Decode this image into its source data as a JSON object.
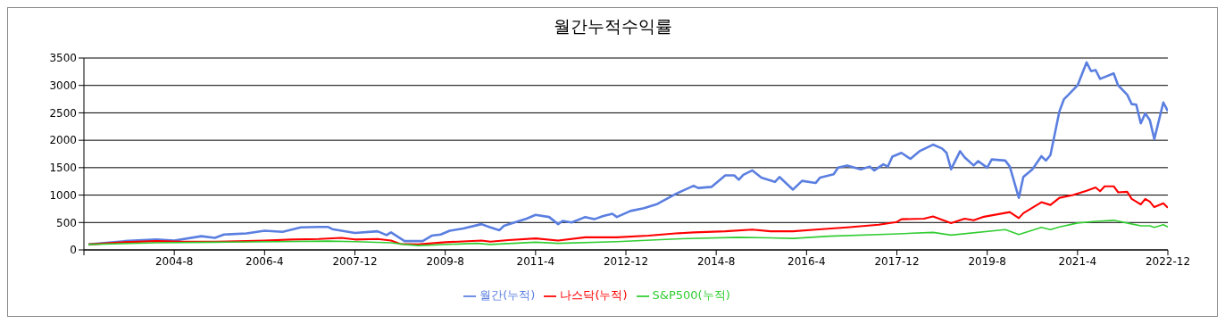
{
  "chart_data": {
    "type": "line",
    "title": "월간누적수익률",
    "xlim": [
      "2002-12",
      "2022-12"
    ],
    "xticks": [
      {
        "value": "2002-12",
        "label": null
      },
      {
        "value": "2004-08",
        "label": "2004-8"
      },
      {
        "value": "2006-04",
        "label": "2006-4"
      },
      {
        "value": "2007-12",
        "label": "2007-12"
      },
      {
        "value": "2009-08",
        "label": "2009-8"
      },
      {
        "value": "2011-04",
        "label": "2011-4"
      },
      {
        "value": "2012-12",
        "label": "2012-12"
      },
      {
        "value": "2014-08",
        "label": "2014-8"
      },
      {
        "value": "2016-04",
        "label": "2016-4"
      },
      {
        "value": "2017-12",
        "label": "2017-12"
      },
      {
        "value": "2019-08",
        "label": "2019-8"
      },
      {
        "value": "2021-04",
        "label": "2021-4"
      },
      {
        "value": "2022-12",
        "label": "2022-12"
      }
    ],
    "ylim": [
      0,
      3500
    ],
    "yticks": [
      0,
      500,
      1000,
      1500,
      2000,
      2500,
      3000,
      3500
    ],
    "grid": "y",
    "legend": "bottom",
    "marker": "none",
    "line_style": "solid",
    "series": [
      {
        "name": "월간(누적)",
        "color": "#5b7fe0",
        "x": [
          "2003-01",
          "2003-09",
          "2004-04",
          "2004-08",
          "2005-02",
          "2005-05",
          "2005-07",
          "2005-12",
          "2006-04",
          "2006-08",
          "2006-12",
          "2007-04",
          "2007-06",
          "2007-07",
          "2007-12",
          "2008-05",
          "2008-07",
          "2008-08",
          "2008-11",
          "2009-03",
          "2009-05",
          "2009-07",
          "2009-09",
          "2009-12",
          "2010-04",
          "2010-06",
          "2010-08",
          "2010-09",
          "2011-02",
          "2011-04",
          "2011-07",
          "2011-09",
          "2011-10",
          "2011-12",
          "2012-03",
          "2012-05",
          "2012-07",
          "2012-09",
          "2012-10",
          "2013-01",
          "2013-04",
          "2013-07",
          "2013-11",
          "2014-03",
          "2014-04",
          "2014-07",
          "2014-10",
          "2014-12",
          "2015-01",
          "2015-02",
          "2015-04",
          "2015-06",
          "2015-09",
          "2015-10",
          "2016-01",
          "2016-03",
          "2016-06",
          "2016-07",
          "2016-10",
          "2016-11",
          "2017-01",
          "2017-04",
          "2017-06",
          "2017-07",
          "2017-09",
          "2017-10",
          "2017-11",
          "2018-01",
          "2018-03",
          "2018-05",
          "2018-08",
          "2018-10",
          "2018-11",
          "2018-12",
          "2019-02",
          "2019-03",
          "2019-05",
          "2019-06",
          "2019-08",
          "2019-09",
          "2019-12",
          "2020-01",
          "2020-03",
          "2020-04",
          "2020-06",
          "2020-08",
          "2020-09",
          "2020-10",
          "2020-12",
          "2021-01",
          "2021-02",
          "2021-04",
          "2021-06",
          "2021-07",
          "2021-08",
          "2021-09",
          "2021-12",
          "2022-01",
          "2022-03",
          "2022-04",
          "2022-05",
          "2022-06",
          "2022-07",
          "2022-08",
          "2022-09",
          "2022-11",
          "2022-12"
        ],
        "values": [
          100,
          160,
          190,
          170,
          250,
          220,
          280,
          300,
          350,
          330,
          410,
          420,
          420,
          380,
          310,
          340,
          270,
          320,
          160,
          160,
          260,
          280,
          350,
          390,
          470,
          410,
          360,
          440,
          570,
          640,
          600,
          470,
          530,
          500,
          600,
          560,
          620,
          660,
          600,
          710,
          760,
          840,
          1020,
          1170,
          1130,
          1150,
          1360,
          1360,
          1280,
          1370,
          1450,
          1320,
          1240,
          1330,
          1100,
          1260,
          1220,
          1320,
          1380,
          1500,
          1540,
          1470,
          1520,
          1450,
          1560,
          1520,
          1700,
          1770,
          1660,
          1800,
          1920,
          1850,
          1770,
          1470,
          1800,
          1690,
          1540,
          1620,
          1500,
          1650,
          1630,
          1520,
          950,
          1330,
          1470,
          1710,
          1630,
          1730,
          2530,
          2750,
          2830,
          3000,
          3420,
          3260,
          3280,
          3120,
          3220,
          3000,
          2830,
          2660,
          2650,
          2310,
          2490,
          2370,
          2020,
          2690,
          2530
        ]
      },
      {
        "name": "나스닥(누적)",
        "color": "#ff0000",
        "x": [
          "2003-01",
          "2003-09",
          "2004-04",
          "2004-10",
          "2005-05",
          "2005-12",
          "2006-04",
          "2006-10",
          "2007-04",
          "2007-09",
          "2007-12",
          "2008-05",
          "2008-08",
          "2008-10",
          "2009-02",
          "2009-08",
          "2010-04",
          "2010-06",
          "2010-10",
          "2011-04",
          "2011-09",
          "2012-03",
          "2012-10",
          "2013-05",
          "2013-11",
          "2014-03",
          "2014-10",
          "2015-04",
          "2015-08",
          "2016-01",
          "2016-06",
          "2017-01",
          "2017-08",
          "2017-12",
          "2018-01",
          "2018-06",
          "2018-08",
          "2018-12",
          "2019-03",
          "2019-05",
          "2019-07",
          "2020-01",
          "2020-03",
          "2020-04",
          "2020-08",
          "2020-10",
          "2020-12",
          "2021-03",
          "2021-06",
          "2021-08",
          "2021-09",
          "2021-10",
          "2021-12",
          "2022-01",
          "2022-03",
          "2022-04",
          "2022-06",
          "2022-07",
          "2022-08",
          "2022-09",
          "2022-11",
          "2022-12"
        ],
        "values": [
          100,
          140,
          160,
          150,
          150,
          160,
          170,
          190,
          200,
          220,
          190,
          200,
          170,
          110,
          100,
          140,
          170,
          150,
          180,
          210,
          170,
          230,
          230,
          260,
          300,
          320,
          340,
          370,
          340,
          340,
          370,
          410,
          460,
          510,
          560,
          570,
          610,
          490,
          570,
          540,
          600,
          690,
          580,
          670,
          870,
          820,
          950,
          1000,
          1080,
          1140,
          1070,
          1160,
          1160,
          1050,
          1060,
          930,
          830,
          930,
          880,
          780,
          850,
          770
        ]
      },
      {
        "name": "S&P500(누적)",
        "color": "#32cd32",
        "x": [
          "2003-01",
          "2004-04",
          "2005-05",
          "2006-07",
          "2007-06",
          "2007-12",
          "2008-08",
          "2008-11",
          "2009-02",
          "2010-03",
          "2010-06",
          "2011-04",
          "2011-09",
          "2012-10",
          "2013-11",
          "2015-01",
          "2015-08",
          "2016-01",
          "2016-09",
          "2017-11",
          "2018-08",
          "2018-12",
          "2019-12",
          "2020-03",
          "2020-08",
          "2020-10",
          "2020-12",
          "2021-04",
          "2021-08",
          "2021-12",
          "2022-03",
          "2022-06",
          "2022-08",
          "2022-09",
          "2022-11",
          "2022-12"
        ],
        "values": [
          100,
          130,
          140,
          150,
          160,
          150,
          130,
          100,
          80,
          120,
          100,
          140,
          120,
          150,
          200,
          230,
          220,
          210,
          250,
          290,
          320,
          270,
          370,
          280,
          410,
          370,
          420,
          490,
          520,
          540,
          490,
          440,
          440,
          410,
          460,
          420
        ]
      }
    ]
  }
}
